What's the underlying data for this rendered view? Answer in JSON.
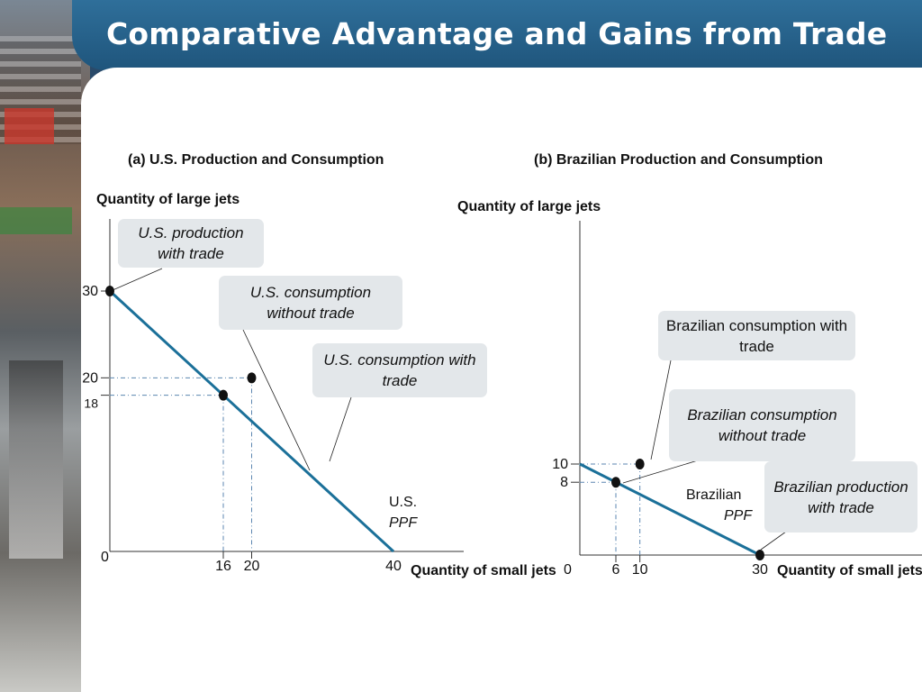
{
  "title": "Comparative Advantage and Gains from Trade",
  "colors": {
    "accent": "#1f5f86",
    "line": "#1b7099",
    "dash": "#5b86b0"
  },
  "chart_data": [
    {
      "type": "line",
      "title": "(a) U.S. Production and Consumption",
      "ylabel": "Quantity of large jets",
      "xlabel": "Quantity of small jets",
      "xlim": [
        0,
        40
      ],
      "ylim": [
        0,
        30
      ],
      "x_ticks": [
        "16",
        "20",
        "40"
      ],
      "y_ticks": [
        "18",
        "20",
        "30"
      ],
      "origin_label": "0",
      "series": [
        {
          "name": "U.S. PPF",
          "x": [
            0,
            40
          ],
          "y": [
            30,
            0
          ]
        }
      ],
      "ppf_label": {
        "line1": "U.S.",
        "line2": "PPF"
      },
      "points": [
        {
          "label": "U.S. production with trade",
          "x": 0,
          "y": 30
        },
        {
          "label": "U.S. consumption without trade",
          "x": 16,
          "y": 18
        },
        {
          "label": "U.S. consumption with trade",
          "x": 20,
          "y": 20
        }
      ]
    },
    {
      "type": "line",
      "title": "(b) Brazilian Production and Consumption",
      "ylabel": "Quantity of large jets",
      "xlabel": "Quantity of small jets",
      "xlim": [
        0,
        30
      ],
      "ylim": [
        0,
        10
      ],
      "x_ticks": [
        "6",
        "10",
        "30"
      ],
      "y_ticks": [
        "8",
        "10"
      ],
      "origin_label": "0",
      "series": [
        {
          "name": "Brazilian PPF",
          "x": [
            0,
            30
          ],
          "y": [
            10,
            0
          ]
        }
      ],
      "ppf_label": {
        "line1": "Brazilian",
        "line2": "PPF"
      },
      "points": [
        {
          "label": "Brazilian consumption with trade",
          "x": 10,
          "y": 10
        },
        {
          "label": "Brazilian consumption without trade",
          "x": 6,
          "y": 8
        },
        {
          "label": "Brazilian production with trade",
          "x": 30,
          "y": 0
        }
      ]
    }
  ]
}
